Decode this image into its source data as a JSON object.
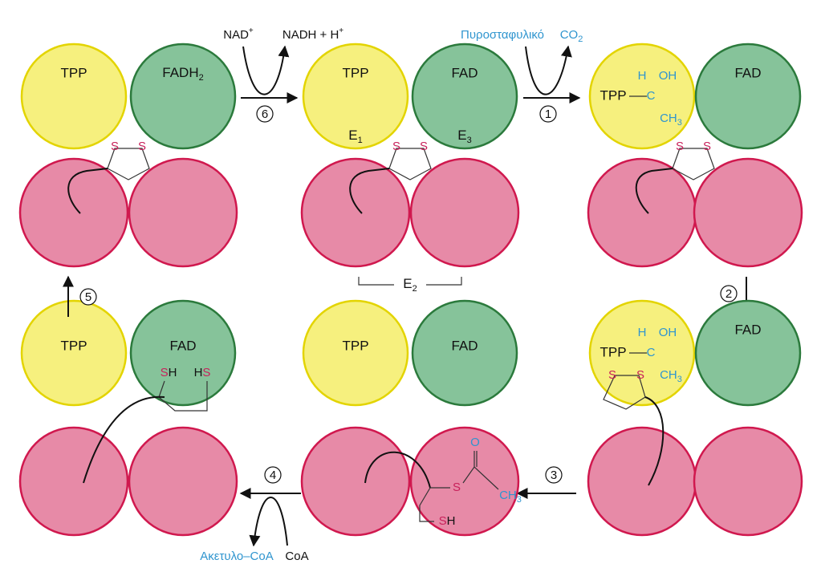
{
  "top_left": {
    "e1": "TPP",
    "e3": {
      "text": "FADH",
      "sub": "2"
    },
    "s1": "S",
    "s2": "S"
  },
  "step6": {
    "number": "6",
    "in": {
      "text": "NAD",
      "sup": "+"
    },
    "out": {
      "text": "NADH + H",
      "sup": "+"
    }
  },
  "top_middle": {
    "e1": "TPP",
    "e3": "FAD",
    "e1_label": {
      "text": "E",
      "sub": "1"
    },
    "e3_label": {
      "text": "E",
      "sub": "3"
    },
    "s1": "S",
    "s2": "S",
    "e2_label": {
      "text": "E",
      "sub": "2"
    }
  },
  "step1": {
    "number": "1",
    "in": "Πυροσταφυλικό",
    "out": {
      "text": "CO",
      "sub": "2"
    }
  },
  "top_right": {
    "e1": "TPP",
    "h": "H",
    "oh": "OH",
    "c": "C",
    "ch3": {
      "text": "CH",
      "sub": "3"
    },
    "e3": "FAD",
    "s1": "S",
    "s2": "S"
  },
  "step2": {
    "number": "2"
  },
  "bottom_right": {
    "e1": "TPP",
    "h": "H",
    "oh": "OH",
    "c": "C",
    "ch3": {
      "text": "CH",
      "sub": "3"
    },
    "e3": "FAD",
    "s1": "S",
    "s2": "S"
  },
  "step3": {
    "number": "3"
  },
  "bottom_middle": {
    "e1": "TPP",
    "e3": "FAD",
    "s": "S",
    "o": "O",
    "ch3": {
      "text": "CH",
      "sub": "3"
    },
    "sh": [
      "S",
      "H"
    ]
  },
  "step4": {
    "number": "4",
    "out": "Ακετυλο–CoA",
    "in": "CoA"
  },
  "bottom_left": {
    "e1": "TPP",
    "e3": "FAD",
    "sh": [
      "S",
      "H"
    ],
    "hs": [
      "H",
      "S"
    ]
  },
  "step5": {
    "number": "5"
  }
}
